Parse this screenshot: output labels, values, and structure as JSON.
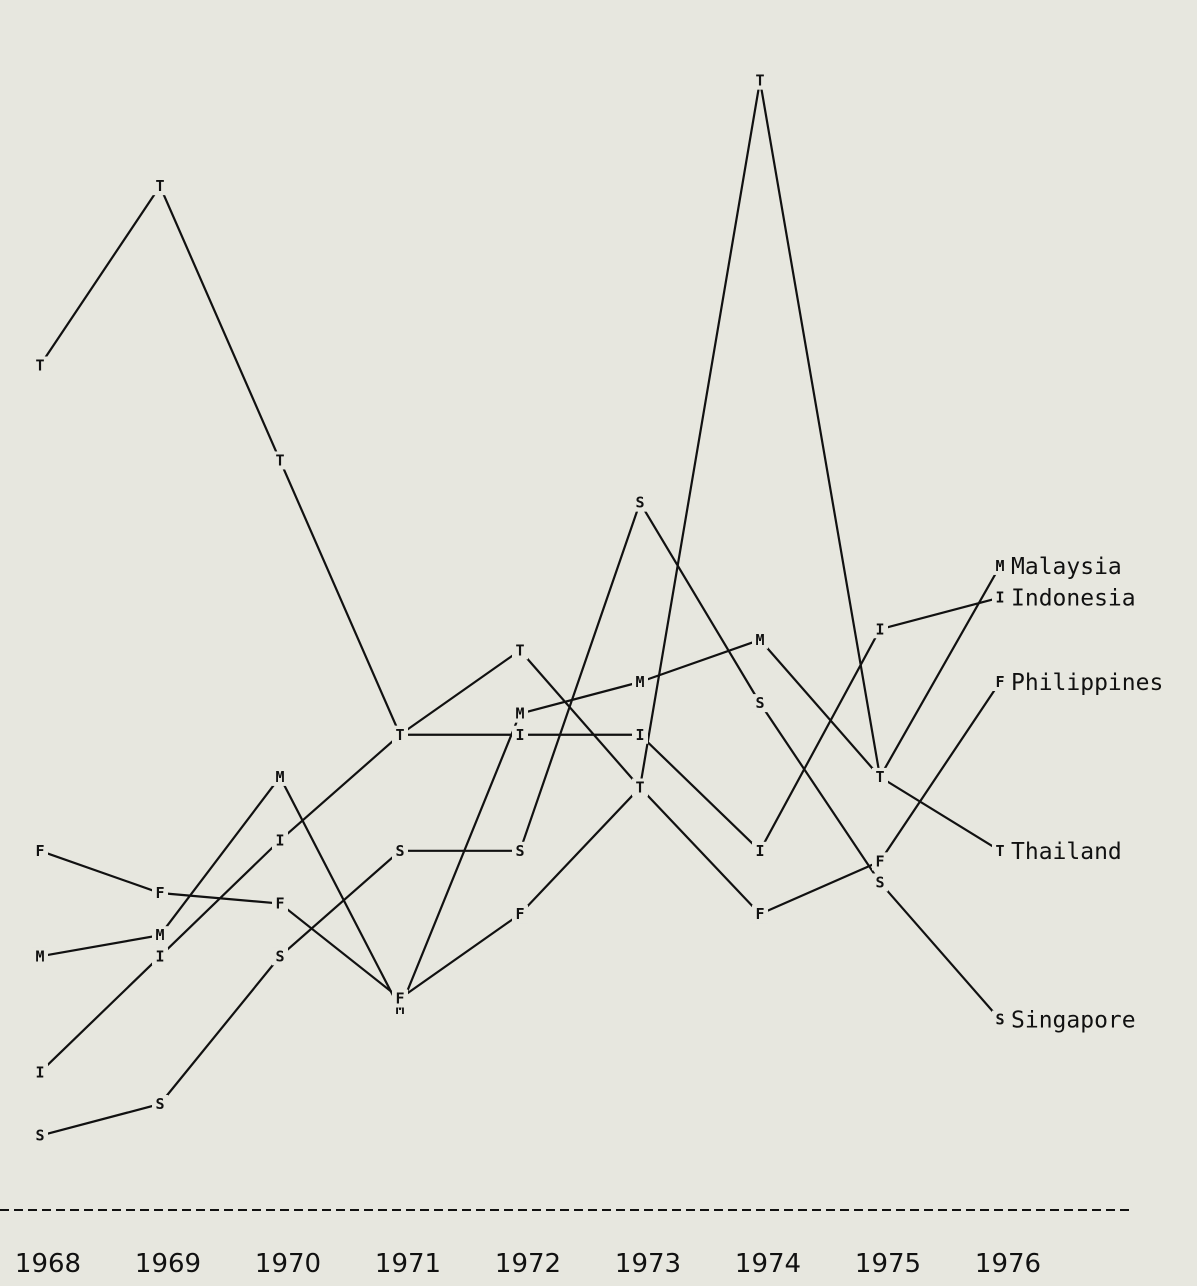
{
  "chart_data": {
    "type": "line",
    "title": "",
    "xlabel": "",
    "ylabel": "",
    "grid": false,
    "legend_placement": "right, at line ends",
    "categories": [
      "1968",
      "1969",
      "1970",
      "1971",
      "1972",
      "1973",
      "1974",
      "1975",
      "1976"
    ],
    "ylim": [
      0,
      100
    ],
    "series": [
      {
        "name": "Malaysia",
        "marker": "M",
        "values": [
          14,
          16,
          31,
          9,
          37,
          40,
          44,
          31,
          51
        ]
      },
      {
        "name": "Indonesia",
        "marker": "I",
        "values": [
          3,
          14,
          25,
          35,
          35,
          35,
          24,
          45,
          48
        ]
      },
      {
        "name": "Philippines",
        "marker": "F",
        "values": [
          24,
          20,
          19,
          10,
          18,
          30,
          18,
          23,
          40
        ]
      },
      {
        "name": "Thailand",
        "marker": "T",
        "values": [
          70,
          87,
          61,
          35,
          43,
          30,
          97,
          31,
          24
        ]
      },
      {
        "name": "Singapore",
        "marker": "S",
        "values": [
          -3,
          0,
          14,
          24,
          24,
          57,
          38,
          21,
          8
        ]
      }
    ]
  },
  "axis": {
    "year_labels": [
      "1968",
      "1969",
      "1970",
      "1971",
      "1972",
      "1973",
      "1974",
      "1975",
      "1976"
    ]
  }
}
